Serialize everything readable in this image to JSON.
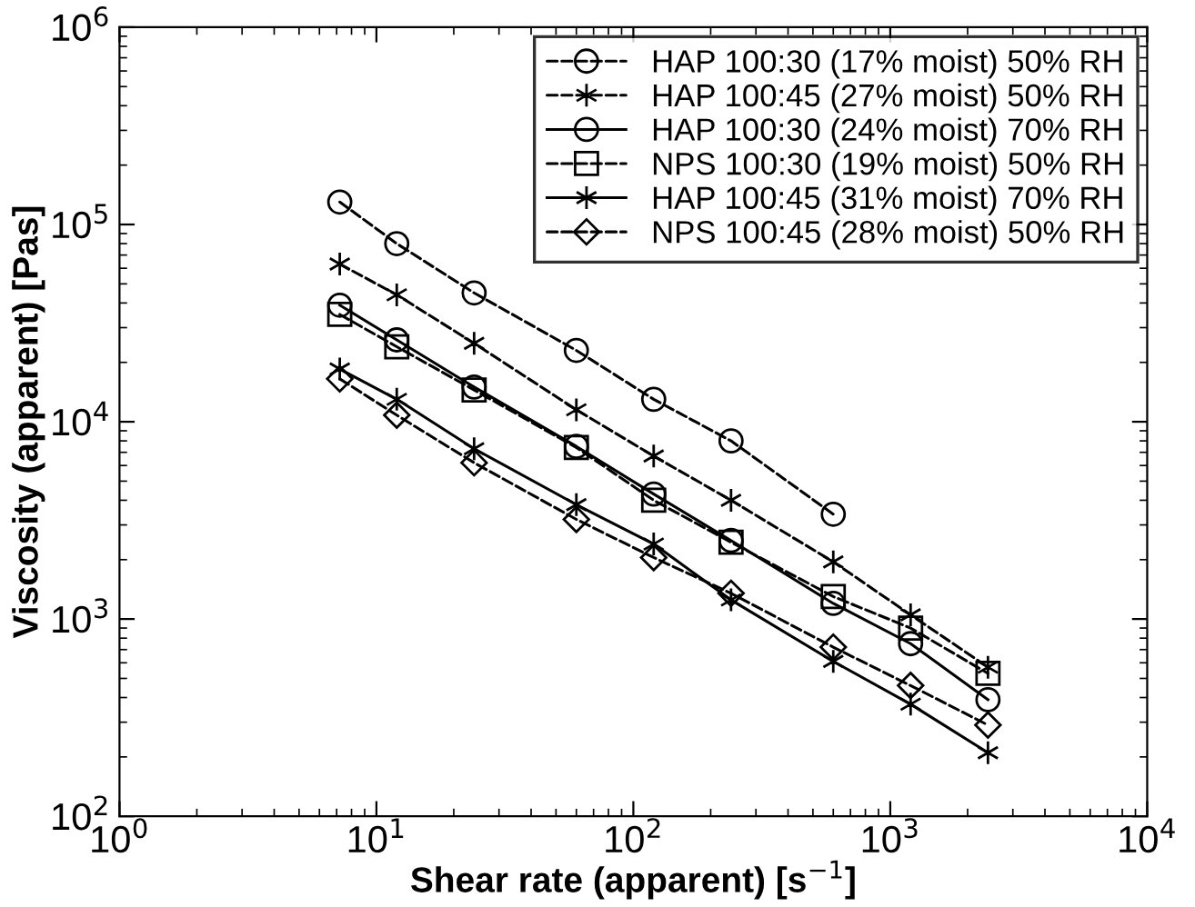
{
  "chart_data": {
    "type": "line",
    "xlabel": "Shear rate (apparent) [s$^{−1}$]",
    "ylabel": "Viscosity (apparent) [Pas]",
    "log": "xy",
    "xlim": [
      1,
      10000
    ],
    "ylim": [
      100,
      1000000
    ],
    "xticks": [
      {
        "value": 1,
        "label": "10$^{0}$"
      },
      {
        "value": 10,
        "label": "10$^{1}$"
      },
      {
        "value": 100,
        "label": "10$^{2}$"
      },
      {
        "value": 1000,
        "label": "10$^{3}$"
      },
      {
        "value": 10000,
        "label": "10$^{4}$"
      }
    ],
    "yticks": [
      {
        "value": 100,
        "label": "10$^{2}$"
      },
      {
        "value": 1000,
        "label": "10$^{3}$"
      },
      {
        "value": 10000,
        "label": "10$^{4}$"
      },
      {
        "value": 100000,
        "label": "10$^{5}$"
      },
      {
        "value": 1000000,
        "label": "10$^{6}$"
      }
    ],
    "x": [
      7.2,
      12,
      24,
      60,
      120,
      240,
      600,
      1200,
      2400
    ],
    "grid": false,
    "legend": "top right",
    "series": [
      {
        "name": "HAP 100:30 (17% moist) 50% RH",
        "color": "#000000",
        "marker": "circle",
        "line_style": "dashed",
        "x": [
          7.2,
          12,
          24,
          60,
          120,
          240,
          600
        ],
        "values": [
          130000,
          80000,
          45000,
          23000,
          13000,
          8000,
          3400
        ]
      },
      {
        "name": "HAP 100:45 (27% moist) 50% RH",
        "color": "#000000",
        "marker": "cross",
        "line_style": "dashed",
        "values": [
          63000,
          44000,
          25000,
          11500,
          6700,
          4000,
          1950,
          1050,
          570
        ]
      },
      {
        "name": "HAP 100:30 (24% moist) 70% RH",
        "color": "#000000",
        "marker": "circle",
        "line_style": "solid",
        "values": [
          39000,
          26000,
          15000,
          7500,
          4300,
          2500,
          1200,
          750,
          390
        ]
      },
      {
        "name": "NPS 100:30 (19% moist) 50% RH",
        "color": "#000000",
        "marker": "square",
        "line_style": "dashed",
        "values": [
          35000,
          24000,
          14500,
          7400,
          4000,
          2450,
          1300,
          900,
          530
        ]
      },
      {
        "name": "HAP 100:45 (31% moist) 70% RH",
        "color": "#000000",
        "marker": "cross",
        "line_style": "solid",
        "values": [
          18500,
          13000,
          7300,
          3800,
          2400,
          1250,
          610,
          370,
          210
        ]
      },
      {
        "name": "NPS 100:45 (28% moist) 50% RH",
        "color": "#000000",
        "marker": "diamond",
        "line_style": "dashed",
        "values": [
          16500,
          10800,
          6200,
          3200,
          2050,
          1350,
          720,
          460,
          290
        ]
      }
    ]
  }
}
